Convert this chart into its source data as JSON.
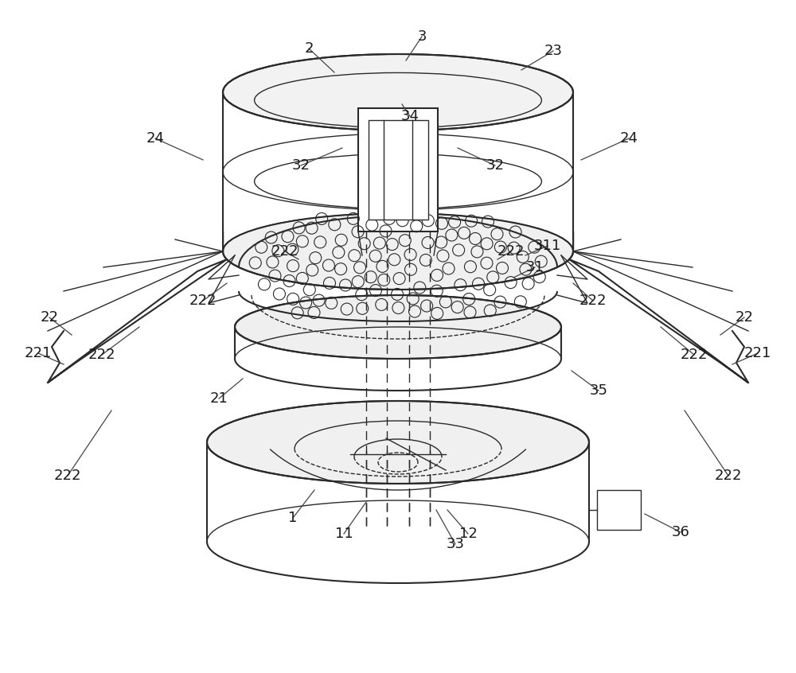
{
  "bg_color": "#ffffff",
  "line_color": "#2a2a2a",
  "label_color": "#1a1a1a",
  "fig_width": 10.0,
  "fig_height": 8.46
}
